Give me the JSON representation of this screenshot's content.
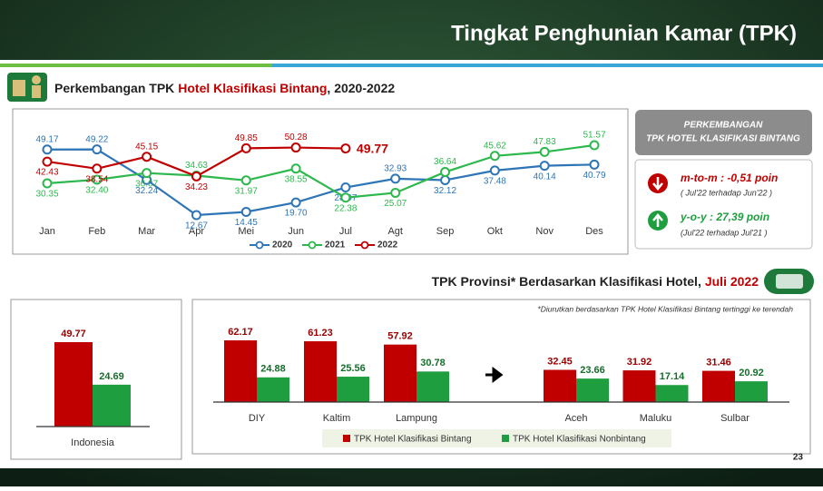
{
  "header": {
    "title": "Tingkat Penghunian Kamar (TPK)"
  },
  "chart_data": [
    {
      "type": "line",
      "title": "Perkembangan TPK",
      "title_highlight": "Hotel Klasifikasi Bintang",
      "title_suffix": ", 2020-2022",
      "categories": [
        "Jan",
        "Feb",
        "Mar",
        "Apr",
        "Mei",
        "Jun",
        "Jul",
        "Agt",
        "Sep",
        "Okt",
        "Nov",
        "Des"
      ],
      "series": [
        {
          "name": "2020",
          "color": "#2e75b6",
          "values": [
            49.17,
            49.22,
            32.24,
            12.67,
            14.45,
            19.7,
            28.07,
            32.93,
            32.12,
            37.48,
            40.14,
            40.79
          ],
          "value_labels": [
            "49.17",
            "49.22",
            "32.24",
            "12.67",
            "14.45",
            "19.70",
            "28.07",
            "32.93",
            "32.12",
            "37.48",
            "40.14",
            "40.79"
          ]
        },
        {
          "name": "2021",
          "color": "#2db84d",
          "values": [
            30.35,
            32.4,
            36.07,
            34.63,
            31.97,
            38.55,
            22.38,
            25.07,
            36.64,
            45.62,
            47.83,
            51.57
          ],
          "value_labels": [
            "30.35",
            "32.40",
            "36.07",
            "34.63",
            "31.97",
            "38.55",
            "22.38",
            "25.07",
            "36.64",
            "45.62",
            "47.83",
            "51.57"
          ]
        },
        {
          "name": "2022",
          "color": "#c00000",
          "values": [
            42.43,
            38.54,
            45.15,
            34.23,
            49.85,
            50.28,
            49.77,
            null,
            null,
            null,
            null,
            null
          ]
        }
      ],
      "legend": "bottom"
    },
    {
      "type": "bar",
      "categories": [
        "Indonesia"
      ],
      "series": [
        {
          "color": "#c00000",
          "values": [
            49.77
          ]
        },
        {
          "color": "#1e9e3e",
          "values": [
            24.69
          ]
        }
      ]
    },
    {
      "type": "bar",
      "title": "TPK Provinsi* Berdasarkan Klasifikasi Hotel,",
      "title_highlight": "Juli 2022",
      "note": "*Diurutkan berdasarkan TPK Hotel Klasifikasi Bintang tertinggi ke terendah",
      "categories": [
        "DIY",
        "Kaltim",
        "Lampung",
        "Aceh",
        "Maluku",
        "Sulbar"
      ],
      "series": [
        {
          "name": "TPK Hotel Klasifikasi Bintang",
          "color": "#c00000",
          "values": [
            62.17,
            61.23,
            57.92,
            32.45,
            31.92,
            31.46
          ]
        },
        {
          "name": "TPK Hotel Klasifikasi Nonbintang",
          "color": "#1e9e3e",
          "values": [
            24.88,
            25.56,
            30.78,
            23.66,
            17.14,
            20.92
          ]
        }
      ],
      "legend": "bottom"
    }
  ],
  "info_box": {
    "title_line1": "PERKEMBANGAN",
    "title_line2": "TPK HOTEL KLASIFIKASI BINTANG",
    "items": [
      {
        "label": "m-to-m : -0,51 poin",
        "note": "( Jul'22 terhadap Jun'22 )"
      },
      {
        "label": "y-o-y : 27,39 poin",
        "note": "(Jul'22 terhadap Jul'21 )"
      }
    ]
  },
  "page_number": "23"
}
